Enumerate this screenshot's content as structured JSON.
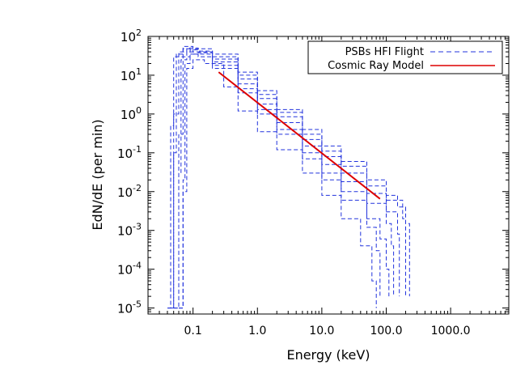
{
  "chart_data": {
    "type": "line",
    "title": "",
    "xlabel": "Energy (keV)",
    "ylabel": "EdN/dE (per min)",
    "xscale": "log",
    "yscale": "log",
    "xlim": [
      0.02,
      8000
    ],
    "ylim": [
      7e-06,
      100
    ],
    "x_ticks": [
      {
        "value": 0.1,
        "label": "0.1"
      },
      {
        "value": 1,
        "label": "1.0"
      },
      {
        "value": 10,
        "label": "10.0"
      },
      {
        "value": 100,
        "label": "100.0"
      },
      {
        "value": 1000,
        "label": "1000.0"
      }
    ],
    "y_ticks": [
      {
        "value": 1e-05,
        "base": "10",
        "exp": "-5"
      },
      {
        "value": 0.0001,
        "base": "10",
        "exp": "-4"
      },
      {
        "value": 0.001,
        "base": "10",
        "exp": "-3"
      },
      {
        "value": 0.01,
        "base": "10",
        "exp": "-2"
      },
      {
        "value": 0.1,
        "base": "10",
        "exp": "-1"
      },
      {
        "value": 1,
        "base": "10",
        "exp": "0"
      },
      {
        "value": 10,
        "base": "10",
        "exp": "1"
      },
      {
        "value": 100,
        "base": "10",
        "exp": "2"
      }
    ],
    "legend": {
      "position": "top-right",
      "entries": [
        {
          "label": "PSBs HFI Flight",
          "color": "#2233dd",
          "style": "dashed"
        },
        {
          "label": "Cosmic Ray Model",
          "color": "#dd0000",
          "style": "solid"
        }
      ]
    },
    "series": [
      {
        "name": "PSBs HFI Flight 1",
        "color": "#2233dd",
        "style": "dashed",
        "points": [
          [
            0.04,
            1e-05
          ],
          [
            0.045,
            0.5
          ],
          [
            0.05,
            30
          ],
          [
            0.07,
            55
          ],
          [
            0.1,
            48
          ],
          [
            0.2,
            35
          ],
          [
            0.5,
            12
          ],
          [
            1,
            4
          ],
          [
            2,
            1.3
          ],
          [
            5,
            0.4
          ],
          [
            10,
            0.15
          ],
          [
            20,
            0.06
          ],
          [
            50,
            0.02
          ],
          [
            100,
            0.008
          ],
          [
            150,
            0.004
          ],
          [
            200,
            0.0015
          ],
          [
            230,
            2e-05
          ]
        ]
      },
      {
        "name": "PSBs HFI Flight 2",
        "color": "#2233dd",
        "style": "dashed",
        "points": [
          [
            0.045,
            1e-05
          ],
          [
            0.05,
            1
          ],
          [
            0.06,
            40
          ],
          [
            0.08,
            50
          ],
          [
            0.12,
            42
          ],
          [
            0.2,
            30
          ],
          [
            0.5,
            10
          ],
          [
            1,
            3.2
          ],
          [
            2,
            1.1
          ],
          [
            5,
            0.3
          ],
          [
            10,
            0.11
          ],
          [
            20,
            0.045
          ],
          [
            50,
            0.014
          ],
          [
            100,
            0.006
          ],
          [
            180,
            0.002
          ],
          [
            200,
            2e-05
          ]
        ]
      },
      {
        "name": "PSBs HFI Flight 3",
        "color": "#2233dd",
        "style": "dashed",
        "points": [
          [
            0.04,
            1e-05
          ],
          [
            0.05,
            0.1
          ],
          [
            0.055,
            35
          ],
          [
            0.07,
            48
          ],
          [
            0.1,
            40
          ],
          [
            0.2,
            26
          ],
          [
            0.5,
            8
          ],
          [
            1,
            2.5
          ],
          [
            2,
            0.85
          ],
          [
            5,
            0.22
          ],
          [
            10,
            0.08
          ],
          [
            20,
            0.03
          ],
          [
            50,
            0.009
          ],
          [
            100,
            0.003
          ],
          [
            150,
            0.0008
          ],
          [
            160,
            2e-05
          ]
        ]
      },
      {
        "name": "PSBs HFI Flight 4",
        "color": "#2233dd",
        "style": "dashed",
        "points": [
          [
            0.05,
            1e-05
          ],
          [
            0.06,
            0.3
          ],
          [
            0.07,
            30
          ],
          [
            0.09,
            45
          ],
          [
            0.12,
            38
          ],
          [
            0.2,
            22
          ],
          [
            0.5,
            6
          ],
          [
            1,
            1.8
          ],
          [
            2,
            0.6
          ],
          [
            5,
            0.15
          ],
          [
            10,
            0.05
          ],
          [
            20,
            0.018
          ],
          [
            50,
            0.005
          ],
          [
            100,
            0.0015
          ],
          [
            120,
            0.0004
          ],
          [
            130,
            2e-05
          ]
        ]
      },
      {
        "name": "PSBs HFI Flight 5",
        "color": "#2233dd",
        "style": "dashed",
        "points": [
          [
            0.05,
            1e-05
          ],
          [
            0.06,
            0.03
          ],
          [
            0.065,
            25
          ],
          [
            0.08,
            40
          ],
          [
            0.1,
            35
          ],
          [
            0.2,
            18
          ],
          [
            0.5,
            4.5
          ],
          [
            1,
            1.3
          ],
          [
            2,
            0.4
          ],
          [
            5,
            0.1
          ],
          [
            10,
            0.03
          ],
          [
            20,
            0.01
          ],
          [
            50,
            0.002
          ],
          [
            80,
            0.0006
          ],
          [
            100,
            0.0001
          ],
          [
            110,
            2e-05
          ]
        ]
      },
      {
        "name": "PSBs HFI Flight 6",
        "color": "#2233dd",
        "style": "dashed",
        "points": [
          [
            0.06,
            1e-05
          ],
          [
            0.07,
            0.02
          ],
          [
            0.075,
            20
          ],
          [
            0.09,
            35
          ],
          [
            0.12,
            30
          ],
          [
            0.2,
            15
          ],
          [
            0.5,
            3.5
          ],
          [
            1,
            1
          ],
          [
            2,
            0.3
          ],
          [
            5,
            0.07
          ],
          [
            10,
            0.02
          ],
          [
            20,
            0.006
          ],
          [
            50,
            0.0012
          ],
          [
            70,
            0.0003
          ],
          [
            80,
            2e-05
          ]
        ]
      },
      {
        "name": "PSBs HFI Flight 7",
        "color": "#2233dd",
        "style": "dashed",
        "points": [
          [
            0.06,
            1e-05
          ],
          [
            0.07,
            0.01
          ],
          [
            0.08,
            15
          ],
          [
            0.1,
            25
          ],
          [
            0.15,
            20
          ],
          [
            0.3,
            5
          ],
          [
            0.5,
            1.2
          ],
          [
            1,
            0.35
          ],
          [
            2,
            0.12
          ],
          [
            5,
            0.03
          ],
          [
            10,
            0.008
          ],
          [
            20,
            0.002
          ],
          [
            40,
            0.0004
          ],
          [
            60,
            5e-05
          ],
          [
            70,
            1e-05
          ]
        ]
      },
      {
        "name": "Cosmic Ray Model",
        "color": "#dd0000",
        "style": "solid",
        "points": [
          [
            0.25,
            12
          ],
          [
            80,
            0.0065
          ]
        ]
      }
    ]
  }
}
